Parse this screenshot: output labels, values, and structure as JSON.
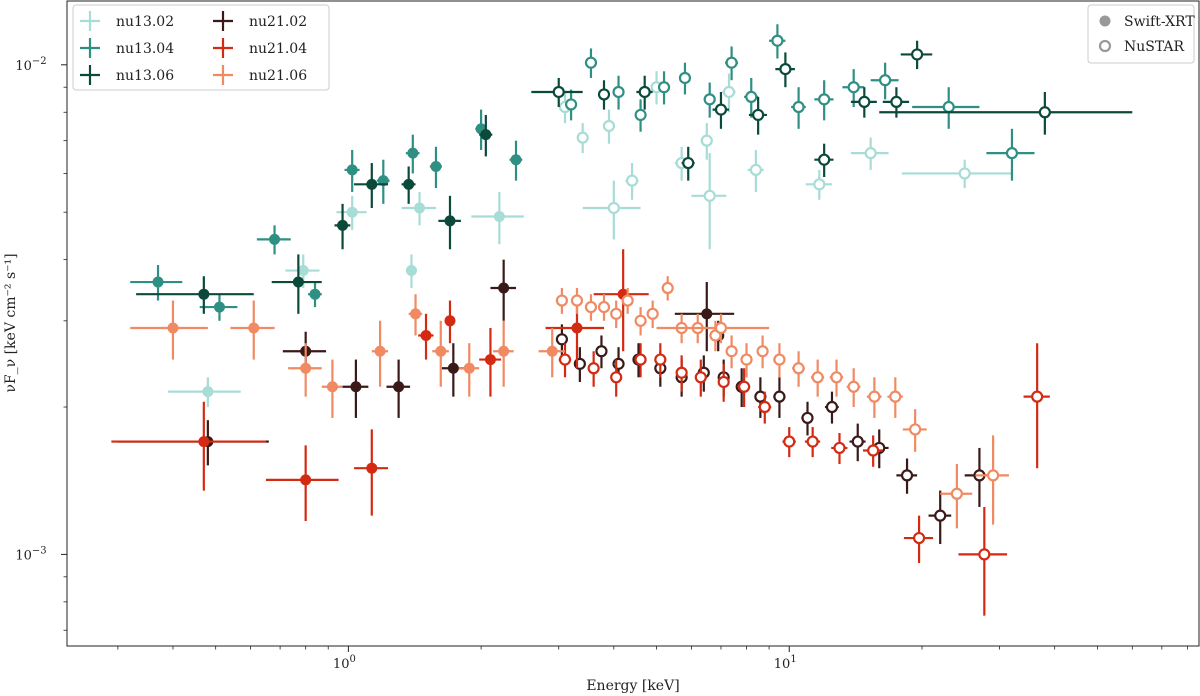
{
  "chart_data": {
    "type": "scatter",
    "title": "",
    "xlabel": "Energy [keV]",
    "ylabel": "νF_ν [keV cm⁻² s⁻¹]",
    "xscale": "log",
    "yscale": "log",
    "xlim": [
      0.23,
      85
    ],
    "ylim": [
      0.00065,
      0.0135
    ],
    "x_ticks": [
      {
        "value": 1,
        "base": "10",
        "exp": "0"
      },
      {
        "value": 10,
        "base": "10",
        "exp": "1"
      }
    ],
    "y_ticks": [
      {
        "value": 0.001,
        "base": "10",
        "exp": "−3"
      },
      {
        "value": 0.01,
        "base": "10",
        "exp": "−2"
      }
    ],
    "legend_series": [
      "nu13_02",
      "nu13_04",
      "nu13_06",
      "nu21_02",
      "nu21_04",
      "nu21_06"
    ],
    "legend_labels": [
      "nu13.02",
      "nu13.04",
      "nu13.06",
      "nu21.02",
      "nu21.04",
      "nu21.06"
    ],
    "instrument_legend": [
      {
        "label": "Swift-XRT",
        "marker": "filled"
      },
      {
        "label": "NuSTAR",
        "marker": "open"
      }
    ],
    "series": [
      {
        "name": "nu13_02",
        "color": "#a8dcd7",
        "xrt": [
          [
            0.48,
            0.00215,
            0.09,
            0.00015
          ],
          [
            0.79,
            0.0038,
            0.07,
            0.0003
          ],
          [
            1.02,
            0.005,
            0.08,
            0.0004
          ],
          [
            1.45,
            0.0051,
            0.13,
            0.0004
          ],
          [
            2.2,
            0.0049,
            0.3,
            0.0006
          ],
          [
            1.39,
            0.0038,
            0.04,
            0.0003
          ]
        ],
        "nustar": [
          [
            3.1,
            0.0082,
            0.1,
            0.0006
          ],
          [
            3.4,
            0.0071,
            0.1,
            0.0005
          ],
          [
            3.9,
            0.0075,
            0.1,
            0.0006
          ],
          [
            4.4,
            0.0058,
            0.15,
            0.0005
          ],
          [
            5.0,
            0.009,
            0.15,
            0.0007
          ],
          [
            5.7,
            0.0063,
            0.2,
            0.0005
          ],
          [
            6.5,
            0.007,
            0.2,
            0.0006
          ],
          [
            7.3,
            0.0088,
            0.25,
            0.0008
          ],
          [
            8.4,
            0.0061,
            0.35,
            0.0006
          ],
          [
            11.7,
            0.0057,
            0.8,
            0.0004
          ],
          [
            15.3,
            0.0066,
            1.5,
            0.0005
          ],
          [
            25.0,
            0.006,
            7,
            0.0004
          ],
          [
            4.0,
            0.0051,
            0.6,
            0.0007
          ],
          [
            6.6,
            0.0054,
            0.6,
            0.0012
          ]
        ]
      },
      {
        "name": "nu13_04",
        "color": "#2f8f83",
        "xrt": [
          [
            0.37,
            0.0036,
            0.05,
            0.0003
          ],
          [
            0.51,
            0.0032,
            0.05,
            0.0002
          ],
          [
            0.68,
            0.0044,
            0.06,
            0.0003
          ],
          [
            0.84,
            0.0034,
            0.03,
            0.0002
          ],
          [
            1.02,
            0.0061,
            0.04,
            0.0006
          ],
          [
            1.2,
            0.0058,
            0.04,
            0.0006
          ],
          [
            1.4,
            0.0066,
            0.05,
            0.0006
          ],
          [
            1.58,
            0.0062,
            0.05,
            0.0006
          ],
          [
            2.0,
            0.0074,
            0.06,
            0.0007
          ],
          [
            2.4,
            0.0064,
            0.08,
            0.0006
          ]
        ],
        "nustar": [
          [
            3.2,
            0.0083,
            0.1,
            0.0006
          ],
          [
            3.55,
            0.0101,
            0.1,
            0.0007
          ],
          [
            4.1,
            0.0088,
            0.12,
            0.0007
          ],
          [
            4.6,
            0.0079,
            0.12,
            0.0006
          ],
          [
            5.2,
            0.009,
            0.15,
            0.0007
          ],
          [
            5.8,
            0.0094,
            0.15,
            0.0007
          ],
          [
            6.6,
            0.0085,
            0.2,
            0.0007
          ],
          [
            7.4,
            0.0101,
            0.25,
            0.0008
          ],
          [
            8.2,
            0.0086,
            0.3,
            0.0008
          ],
          [
            9.4,
            0.0112,
            0.4,
            0.0009
          ],
          [
            10.5,
            0.0082,
            0.4,
            0.0008
          ],
          [
            12.0,
            0.0085,
            0.6,
            0.0008
          ],
          [
            14.0,
            0.009,
            0.8,
            0.0008
          ],
          [
            16.5,
            0.0093,
            1.2,
            0.0008
          ],
          [
            23.0,
            0.0082,
            4,
            0.0008
          ],
          [
            32.0,
            0.0066,
            4,
            0.0008
          ]
        ]
      },
      {
        "name": "nu13_06",
        "color": "#0b4a3b",
        "xrt": [
          [
            0.47,
            0.0034,
            0.14,
            0.0003
          ],
          [
            0.77,
            0.0036,
            0.1,
            0.0005
          ],
          [
            0.97,
            0.0047,
            0.04,
            0.0005
          ],
          [
            1.13,
            0.0057,
            0.1,
            0.0006
          ],
          [
            1.37,
            0.0057,
            0.05,
            0.0005
          ],
          [
            1.7,
            0.0048,
            0.1,
            0.0006
          ],
          [
            2.05,
            0.0072,
            0.07,
            0.0007
          ]
        ],
        "nustar": [
          [
            3.0,
            0.0088,
            0.4,
            0.0006
          ],
          [
            3.8,
            0.0087,
            0.1,
            0.0006
          ],
          [
            4.7,
            0.0088,
            0.2,
            0.0007
          ],
          [
            5.9,
            0.0063,
            0.2,
            0.0005
          ],
          [
            7.0,
            0.0081,
            0.3,
            0.0007
          ],
          [
            8.5,
            0.0079,
            0.4,
            0.0007
          ],
          [
            9.8,
            0.0098,
            0.5,
            0.0008
          ],
          [
            12.0,
            0.0064,
            0.6,
            0.0005
          ],
          [
            14.8,
            0.0084,
            1.0,
            0.0006
          ],
          [
            17.5,
            0.0084,
            1.2,
            0.0006
          ],
          [
            19.5,
            0.0105,
            1.6,
            0.0007
          ],
          [
            38.0,
            0.008,
            22,
            0.0008
          ]
        ]
      },
      {
        "name": "nu21_02",
        "color": "#3a1a18",
        "xrt": [
          [
            0.48,
            0.0017,
            0.18,
            0.00018
          ],
          [
            0.8,
            0.0026,
            0.09,
            0.00025
          ],
          [
            1.04,
            0.0022,
            0.07,
            0.0003
          ],
          [
            1.3,
            0.0022,
            0.08,
            0.0003
          ],
          [
            1.73,
            0.0024,
            0.1,
            0.0003
          ],
          [
            2.25,
            0.0035,
            0.15,
            0.0005
          ],
          [
            6.5,
            0.0031,
            1.0,
            0.0005
          ]
        ],
        "nustar": [
          [
            3.05,
            0.00275,
            0.08,
            0.0002
          ],
          [
            3.35,
            0.00245,
            0.08,
            0.0002
          ],
          [
            3.75,
            0.0026,
            0.08,
            0.0002
          ],
          [
            4.1,
            0.00245,
            0.1,
            0.0002
          ],
          [
            4.55,
            0.0025,
            0.1,
            0.0002
          ],
          [
            5.1,
            0.0024,
            0.1,
            0.0002
          ],
          [
            5.7,
            0.0023,
            0.1,
            0.0002
          ],
          [
            6.4,
            0.00235,
            0.15,
            0.0002
          ],
          [
            7.1,
            0.0023,
            0.15,
            0.0002
          ],
          [
            7.8,
            0.0022,
            0.2,
            0.0002
          ],
          [
            8.6,
            0.0021,
            0.25,
            0.0002
          ],
          [
            9.5,
            0.0021,
            0.3,
            0.0002
          ],
          [
            11.0,
            0.0019,
            0.35,
            0.00015
          ],
          [
            12.5,
            0.002,
            0.45,
            0.00015
          ],
          [
            14.3,
            0.0017,
            0.6,
            0.00015
          ],
          [
            16.0,
            0.00165,
            0.8,
            0.00015
          ],
          [
            18.5,
            0.00145,
            1.0,
            0.00012
          ],
          [
            22.0,
            0.0012,
            1.3,
            0.00015
          ],
          [
            27.0,
            0.00145,
            2.0,
            0.0002
          ],
          [
            6.9,
            0.0028,
            0.15,
            0.0002
          ]
        ]
      },
      {
        "name": "nu21_04",
        "color": "#d42a12",
        "xrt": [
          [
            0.47,
            0.0017,
            0.18,
            0.00035
          ],
          [
            0.8,
            0.00142,
            0.15,
            0.00025
          ],
          [
            1.13,
            0.0015,
            0.1,
            0.0003
          ],
          [
            1.5,
            0.0028,
            0.06,
            0.0003
          ],
          [
            1.7,
            0.003,
            0.04,
            0.0003
          ],
          [
            2.1,
            0.0025,
            0.12,
            0.0004
          ],
          [
            3.3,
            0.0029,
            0.5,
            0.0005
          ],
          [
            4.2,
            0.0034,
            0.6,
            0.0008
          ]
        ],
        "nustar": [
          [
            3.1,
            0.0025,
            0.1,
            0.0002
          ],
          [
            3.6,
            0.0024,
            0.1,
            0.0002
          ],
          [
            4.05,
            0.0023,
            0.1,
            0.0002
          ],
          [
            4.6,
            0.0025,
            0.1,
            0.0002
          ],
          [
            5.1,
            0.0025,
            0.1,
            0.0002
          ],
          [
            5.7,
            0.00235,
            0.15,
            0.0002
          ],
          [
            6.3,
            0.0023,
            0.15,
            0.0002
          ],
          [
            7.1,
            0.00225,
            0.2,
            0.0002
          ],
          [
            7.9,
            0.0022,
            0.25,
            0.0002
          ],
          [
            8.8,
            0.002,
            0.3,
            0.00015
          ],
          [
            10.0,
            0.0017,
            0.35,
            0.00012
          ],
          [
            11.3,
            0.0017,
            0.45,
            0.00012
          ],
          [
            13.0,
            0.00165,
            0.55,
            0.00012
          ],
          [
            15.5,
            0.00163,
            0.8,
            0.00012
          ],
          [
            19.7,
            0.00108,
            1.5,
            0.00012
          ],
          [
            27.7,
            0.001,
            3.5,
            0.00025
          ],
          [
            36.5,
            0.0021,
            2.5,
            0.0006
          ]
        ]
      },
      {
        "name": "nu21_06",
        "color": "#f08a62",
        "xrt": [
          [
            0.4,
            0.0029,
            0.08,
            0.0004
          ],
          [
            0.61,
            0.0029,
            0.07,
            0.0004
          ],
          [
            0.8,
            0.0024,
            0.07,
            0.0003
          ],
          [
            0.92,
            0.0022,
            0.05,
            0.0003
          ],
          [
            1.18,
            0.0026,
            0.05,
            0.0004
          ],
          [
            1.42,
            0.0031,
            0.05,
            0.0003
          ],
          [
            1.62,
            0.0026,
            0.07,
            0.0004
          ],
          [
            1.88,
            0.0024,
            0.1,
            0.0003
          ],
          [
            2.25,
            0.0026,
            0.12,
            0.0004
          ],
          [
            2.9,
            0.0026,
            0.2,
            0.0003
          ]
        ],
        "nustar": [
          [
            3.05,
            0.0033,
            0.08,
            0.0002
          ],
          [
            3.3,
            0.0033,
            0.08,
            0.0002
          ],
          [
            3.55,
            0.0032,
            0.08,
            0.0002
          ],
          [
            3.8,
            0.0032,
            0.08,
            0.0002
          ],
          [
            4.05,
            0.0031,
            0.1,
            0.0002
          ],
          [
            4.3,
            0.0033,
            0.1,
            0.0002
          ],
          [
            4.6,
            0.003,
            0.1,
            0.0002
          ],
          [
            4.9,
            0.0031,
            0.1,
            0.0002
          ],
          [
            5.3,
            0.0035,
            0.15,
            0.0002
          ],
          [
            5.7,
            0.0029,
            0.15,
            0.0002
          ],
          [
            6.2,
            0.0029,
            0.15,
            0.0002
          ],
          [
            6.8,
            0.0028,
            0.2,
            0.0002
          ],
          [
            7.4,
            0.0026,
            0.2,
            0.0002
          ],
          [
            8.0,
            0.0025,
            0.25,
            0.0002
          ],
          [
            8.7,
            0.0026,
            0.25,
            0.0002
          ],
          [
            9.5,
            0.0025,
            0.3,
            0.0002
          ],
          [
            10.5,
            0.0024,
            0.35,
            0.0002
          ],
          [
            11.6,
            0.0023,
            0.4,
            0.0002
          ],
          [
            12.8,
            0.0023,
            0.45,
            0.0002
          ],
          [
            14.0,
            0.0022,
            0.5,
            0.0002
          ],
          [
            15.6,
            0.0021,
            0.6,
            0.0002
          ],
          [
            17.4,
            0.0021,
            0.7,
            0.0002
          ],
          [
            19.3,
            0.0018,
            1.2,
            0.00018
          ],
          [
            24.0,
            0.00133,
            2.0,
            0.0002
          ],
          [
            29.0,
            0.00145,
            2.5,
            0.0003
          ],
          [
            7.0,
            0.0029,
            2.0,
            0.0002
          ]
        ]
      }
    ]
  }
}
